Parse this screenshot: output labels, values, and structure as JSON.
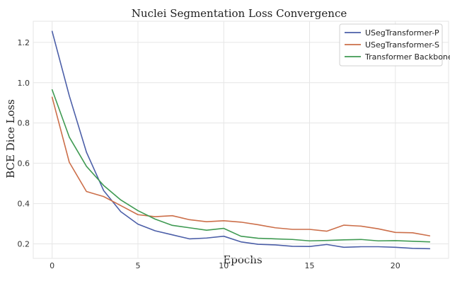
{
  "chart_data": {
    "type": "line",
    "title": "Nuclei Segmentation Loss Convergence",
    "xlabel": "Epochs",
    "ylabel": "BCE Dice Loss",
    "xlim": [
      -1.1,
      23.1
    ],
    "ylim": [
      0.128,
      1.305
    ],
    "xticks": [
      0,
      5,
      10,
      15,
      20
    ],
    "yticks": [
      0.2,
      0.4,
      0.6,
      0.8,
      1.0,
      1.2
    ],
    "ytick_labels": [
      "0.2",
      "0.4",
      "0.6",
      "0.8",
      "1.0",
      "1.2"
    ],
    "grid": true,
    "legend_position": "top-right",
    "x": [
      0,
      1,
      2,
      3,
      4,
      5,
      6,
      7,
      8,
      9,
      10,
      11,
      12,
      13,
      14,
      15,
      16,
      17,
      18,
      19,
      20,
      21,
      22
    ],
    "series": [
      {
        "name": "USegTransformer-P",
        "color": "#4c5fa8",
        "values": [
          1.255,
          0.935,
          0.655,
          0.465,
          0.36,
          0.298,
          0.265,
          0.245,
          0.225,
          0.229,
          0.238,
          0.21,
          0.198,
          0.195,
          0.188,
          0.187,
          0.197,
          0.183,
          0.186,
          0.186,
          0.183,
          0.178,
          0.176
        ]
      },
      {
        "name": "USegTransformer-S",
        "color": "#cc6f4a",
        "values": [
          0.928,
          0.605,
          0.46,
          0.435,
          0.39,
          0.345,
          0.335,
          0.34,
          0.32,
          0.31,
          0.315,
          0.308,
          0.295,
          0.28,
          0.272,
          0.272,
          0.263,
          0.293,
          0.288,
          0.275,
          0.257,
          0.255,
          0.24
        ]
      },
      {
        "name": "Transformer Backbone",
        "color": "#3f9a52",
        "values": [
          0.965,
          0.73,
          0.585,
          0.49,
          0.418,
          0.365,
          0.323,
          0.292,
          0.28,
          0.268,
          0.277,
          0.238,
          0.228,
          0.225,
          0.222,
          0.215,
          0.217,
          0.22,
          0.222,
          0.215,
          0.216,
          0.213,
          0.21
        ]
      }
    ]
  }
}
